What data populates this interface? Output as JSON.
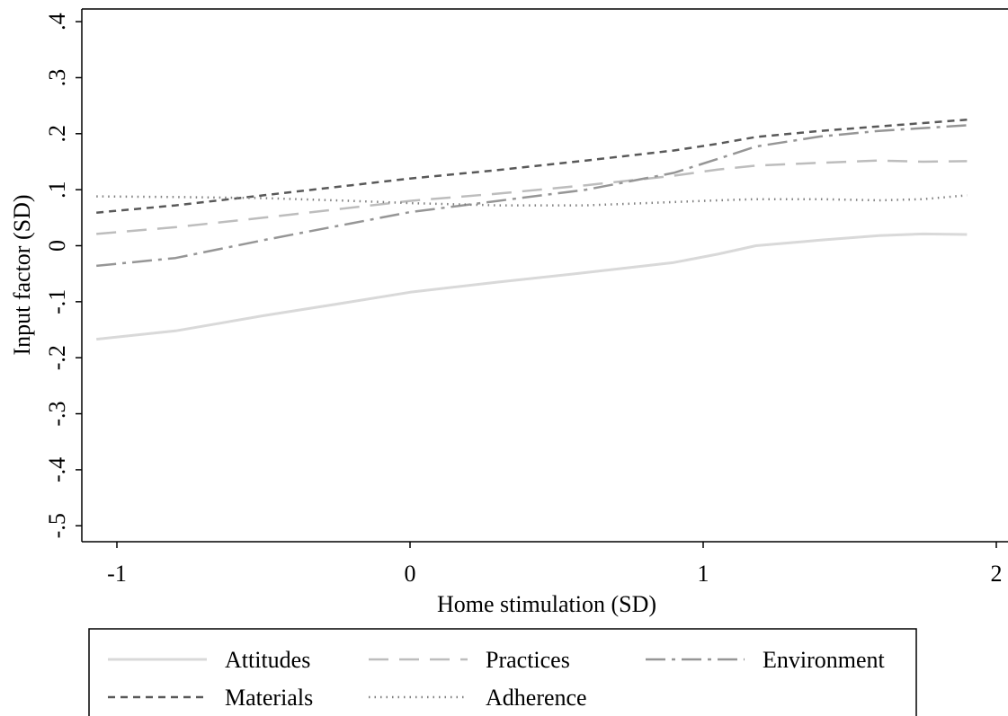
{
  "chart_data": {
    "type": "line",
    "xlabel": "Home stimulation (SD)",
    "ylabel": "Input factor (SD)",
    "xlim": [
      -1.1,
      2.02
    ],
    "ylim": [
      -0.53,
      0.42
    ],
    "x_ticks": [
      -1,
      0,
      1,
      2
    ],
    "x_tick_labels": [
      "-1",
      "0",
      "1",
      "2"
    ],
    "y_ticks": [
      -0.5,
      -0.4,
      -0.3,
      -0.2,
      -0.1,
      0,
      0.1,
      0.2,
      0.3,
      0.4
    ],
    "y_tick_labels": [
      "-.5",
      "-.4",
      "-.3",
      "-.2",
      "-.1",
      "0",
      ".1",
      ".2",
      ".3",
      ".4"
    ],
    "grid": false,
    "legend_position": "bottom",
    "series": [
      {
        "name": "Attitudes",
        "color": "#d9d9d9",
        "dash": "solid",
        "x": [
          -1.07,
          -0.8,
          -0.5,
          -0.2,
          0.0,
          0.3,
          0.6,
          0.9,
          1.05,
          1.18,
          1.4,
          1.6,
          1.75,
          1.9
        ],
        "y": [
          -0.167,
          -0.152,
          -0.125,
          -0.1,
          -0.083,
          -0.065,
          -0.048,
          -0.03,
          -0.015,
          0.0,
          0.01,
          0.018,
          0.021,
          0.02
        ]
      },
      {
        "name": "Practices",
        "color": "#bdbdbd",
        "dash": "longdash",
        "x": [
          -1.07,
          -0.8,
          -0.5,
          -0.2,
          0.0,
          0.3,
          0.6,
          0.9,
          1.05,
          1.18,
          1.4,
          1.6,
          1.75,
          1.9
        ],
        "y": [
          0.021,
          0.033,
          0.05,
          0.068,
          0.08,
          0.093,
          0.108,
          0.125,
          0.136,
          0.143,
          0.148,
          0.152,
          0.15,
          0.151
        ]
      },
      {
        "name": "Environment",
        "color": "#969696",
        "dash": "dashdot",
        "x": [
          -1.07,
          -0.8,
          -0.5,
          -0.2,
          0.0,
          0.3,
          0.6,
          0.9,
          1.05,
          1.18,
          1.4,
          1.6,
          1.75,
          1.9
        ],
        "y": [
          -0.036,
          -0.022,
          0.01,
          0.04,
          0.06,
          0.08,
          0.1,
          0.13,
          0.155,
          0.177,
          0.195,
          0.205,
          0.21,
          0.215
        ]
      },
      {
        "name": "Materials",
        "color": "#595959",
        "dash": "shortdash",
        "x": [
          -1.07,
          -0.8,
          -0.5,
          -0.2,
          0.0,
          0.3,
          0.6,
          0.9,
          1.05,
          1.18,
          1.4,
          1.6,
          1.75,
          1.9
        ],
        "y": [
          0.059,
          0.072,
          0.09,
          0.108,
          0.12,
          0.135,
          0.152,
          0.17,
          0.182,
          0.194,
          0.205,
          0.213,
          0.219,
          0.225
        ]
      },
      {
        "name": "Adherence",
        "color": "#808080",
        "dash": "dot",
        "x": [
          -1.07,
          -0.8,
          -0.5,
          -0.2,
          0.0,
          0.3,
          0.6,
          0.9,
          1.05,
          1.18,
          1.4,
          1.6,
          1.75,
          1.9
        ],
        "y": [
          0.088,
          0.087,
          0.085,
          0.08,
          0.076,
          0.072,
          0.072,
          0.078,
          0.081,
          0.083,
          0.083,
          0.081,
          0.083,
          0.09
        ]
      }
    ],
    "legend": {
      "rows": [
        [
          "Attitudes",
          "Practices",
          "Environment"
        ],
        [
          "Materials",
          "Adherence"
        ]
      ]
    }
  }
}
